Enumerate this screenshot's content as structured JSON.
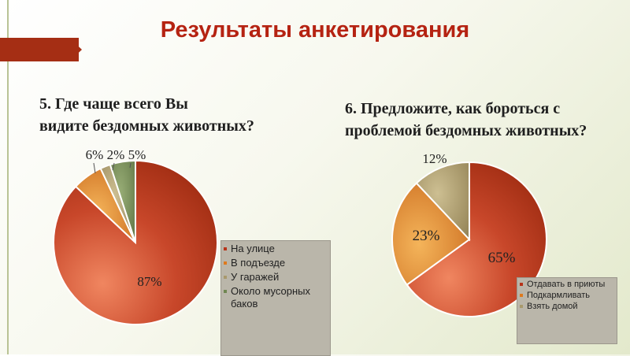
{
  "title": "Результаты анкетирования",
  "chart_data": [
    {
      "type": "pie",
      "title": "5. Где чаще всего Вы видите бездомных животных?",
      "title_lines": [
        "5. Где чаще всего Вы",
        "видите бездомных животных?"
      ],
      "categories": [
        "На улице",
        "В подъезде",
        "У гаражей",
        "Около мусорных баков"
      ],
      "values": [
        87,
        6,
        2,
        5
      ],
      "data_labels": [
        "87%",
        "6%",
        "2%",
        "5%"
      ],
      "colors": [
        "#b73319",
        "#de7a1e",
        "#a8996c",
        "#6f8651"
      ],
      "legend_position": "right"
    },
    {
      "type": "pie",
      "title": "6. Предложите, как бороться с проблемой бездомных животных?",
      "title_lines": [
        "6. Предложите, как бороться с",
        "проблемой бездомных животных?"
      ],
      "categories": [
        "Отдавать в приюты",
        "Подкармливать",
        "Взять домой"
      ],
      "values": [
        65,
        23,
        12
      ],
      "data_labels": [
        "65%",
        "23%",
        "12%"
      ],
      "colors": [
        "#b73319",
        "#de7a1e",
        "#a8996c"
      ],
      "legend_position": "right"
    }
  ]
}
